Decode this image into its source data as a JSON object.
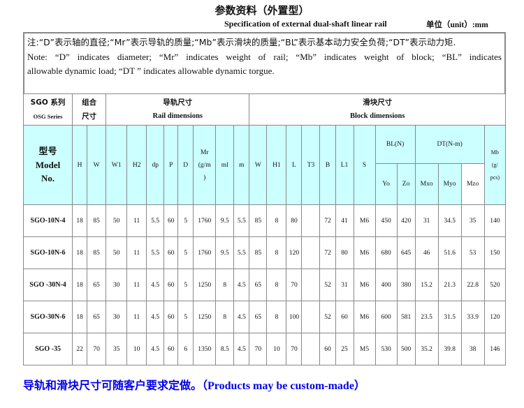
{
  "header": {
    "title": "参数资料（外置型）",
    "subtitle": "Specification of external dual-shaft linear rail",
    "unit_label_cn": "单位（",
    "unit_label_en": "unit）:mm"
  },
  "notes": {
    "cn": "注:“D”表示轴的直径;“Mr”表示导轨的质量;“Mb”表示滑块的质量;“BL”表示基本动力安全负荷;“DT”表示动力矩.",
    "en_line1": "Note: “D” indicates diameter; “Mr” indicates weight of rail; “Mb” indicates weight of block; “BL” indicates",
    "en_line2": "allowable dynamic load; “DT ” indicates allowable dynamic torgue."
  },
  "table": {
    "series_cn": "SGO 系列",
    "series_en": "OSG Series",
    "combo_cn_1": "组合",
    "combo_cn_2": "尺寸",
    "rail_cn": "导轨尺寸",
    "rail_en": "Rail dimensions",
    "block_cn": "滑块尺寸",
    "block_en": "Block dimensions",
    "model_cn": "型号",
    "model_en_1": "Model",
    "model_en_2": "No.",
    "columns_combo": [
      "H",
      "W"
    ],
    "columns_rail": [
      "W1",
      "H2",
      "dp",
      "P",
      "D",
      "Mr\n(g/m\n)",
      "ml",
      "m"
    ],
    "columns_block": [
      "W",
      "H1",
      "L",
      "T3",
      "B",
      "L1",
      "S"
    ],
    "bl_label": "BL(N)",
    "dt_label": "DT(N-m)",
    "mb_label": "Mb\n(g/\npcs)",
    "sub_columns": [
      "Yo",
      "Zo",
      "Mxo",
      "Myo",
      "Mzo"
    ],
    "rows": [
      [
        "SGO-10N-4",
        "18",
        "85",
        "50",
        "11",
        "5.5",
        "60",
        "5",
        "1760",
        "9.5",
        "5.5",
        "85",
        "8",
        "80",
        "",
        "72",
        "41",
        "M6",
        "450",
        "420",
        "31",
        "34.5",
        "35",
        "140"
      ],
      [
        "SGO-10N-6",
        "18",
        "85",
        "50",
        "11",
        "5.5",
        "60",
        "5",
        "1760",
        "9.5",
        "5.5",
        "85",
        "8",
        "120",
        "",
        "72",
        "80",
        "M6",
        "680",
        "645",
        "46",
        "51.6",
        "53",
        "150"
      ],
      [
        "SGO -30N-4",
        "18",
        "65",
        "30",
        "11",
        "4.5",
        "60",
        "5",
        "1250",
        "8",
        "4.5",
        "65",
        "8",
        "70",
        "",
        "52",
        "31",
        "M6",
        "400",
        "380",
        "15.2",
        "21.3",
        "22.8",
        "520"
      ],
      [
        "SGO-30N-6",
        "18",
        "65",
        "30",
        "11",
        "4.5",
        "60",
        "5",
        "1250",
        "8",
        "4.5",
        "65",
        "8",
        "100",
        "",
        "52",
        "60",
        "M6",
        "600",
        "581",
        "23.5",
        "31.5",
        "33.9",
        "120"
      ],
      [
        "SGO -35",
        "22",
        "70",
        "35",
        "10",
        "4.5",
        "60",
        "6",
        "1350",
        "8.5",
        "4.5",
        "70",
        "10",
        "70",
        "",
        "60",
        "25",
        "M5",
        "530",
        "500",
        "35.2",
        "39.8",
        "38",
        "146"
      ]
    ]
  },
  "footer": {
    "cn": "导轨和滑块尺寸可随客户要求定做。（",
    "en": "Products may be custom-made）"
  },
  "colors": {
    "header_bg": "#ccffff",
    "footer_text": "#0000ee",
    "border": "#888888"
  }
}
